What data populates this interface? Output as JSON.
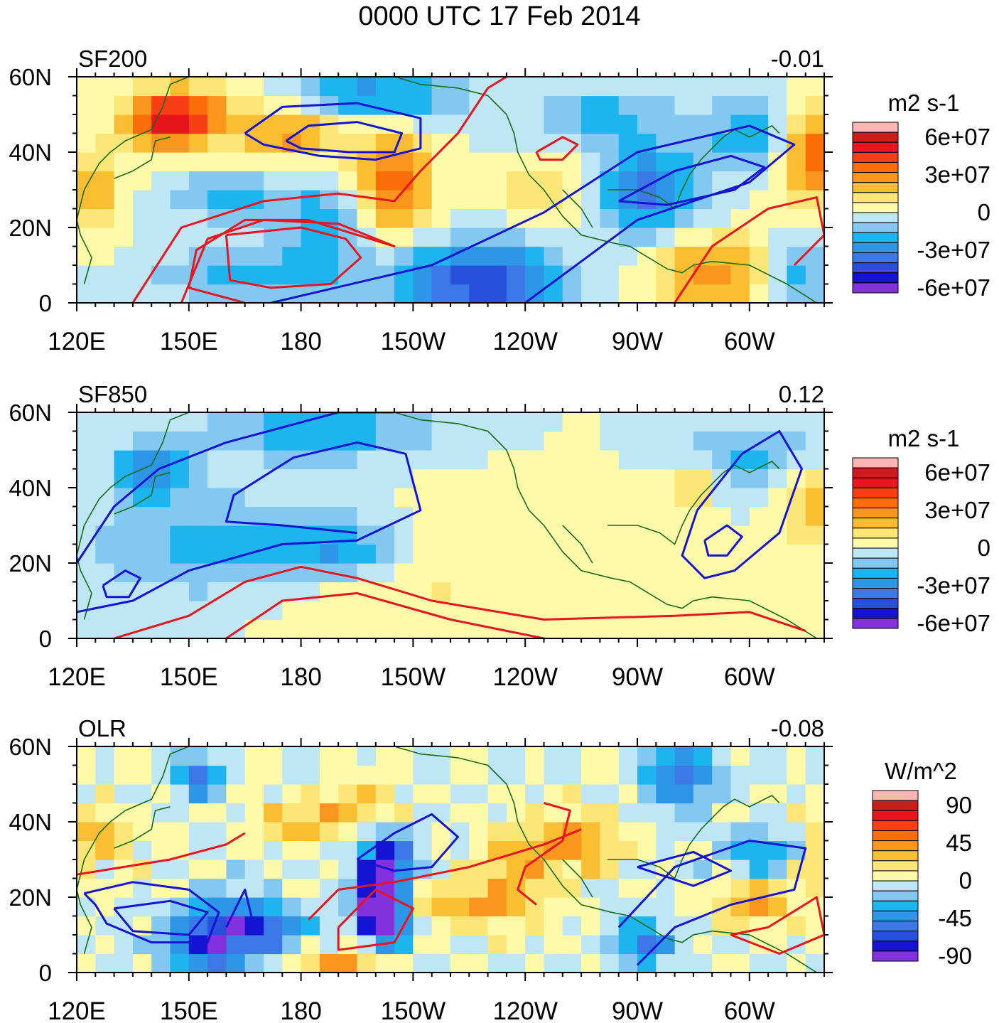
{
  "figure_title": "0000 UTC 17 Feb 2014",
  "colors": {
    "land_outline": "#1a6b1a",
    "positive_contour": "#e8141e",
    "negative_contour": "#1414d2",
    "frame": "#000000"
  },
  "chart_data": [
    {
      "type": "heatmap",
      "name": "SF200",
      "title": "SF200",
      "correlation_label": "-0.01",
      "units": "m2 s-1",
      "xlabel": "",
      "ylabel": "",
      "xlim": [
        120,
        320
      ],
      "ylim": [
        0,
        60
      ],
      "x_ticks": [
        "120E",
        "150E",
        "180",
        "150W",
        "120W",
        "90W",
        "60W"
      ],
      "y_ticks": [
        "0",
        "20N",
        "40N",
        "60N"
      ],
      "colorbar_labels": [
        "6e+07",
        "3e+07",
        "0",
        "-3e+07",
        "-6e+07"
      ],
      "colorbar_colors": [
        "#f9b4b4",
        "#c81e1e",
        "#e8141e",
        "#f83e14",
        "#fa6e0a",
        "#fa961e",
        "#fbbe32",
        "#fde678",
        "#fffaaa",
        "#bee6f5",
        "#82c8f0",
        "#1eb4f0",
        "#2d96e6",
        "#3c78e6",
        "#2850dc",
        "#1414d2",
        "#8232dc"
      ],
      "contour_levels": {
        "positive": "red",
        "negative": "blue"
      }
    },
    {
      "type": "heatmap",
      "name": "SF850",
      "title": "SF850",
      "correlation_label": "0.12",
      "units": "m2 s-1",
      "xlabel": "",
      "ylabel": "",
      "xlim": [
        120,
        320
      ],
      "ylim": [
        0,
        60
      ],
      "x_ticks": [
        "120E",
        "150E",
        "180",
        "150W",
        "120W",
        "90W",
        "60W"
      ],
      "y_ticks": [
        "0",
        "20N",
        "40N",
        "60N"
      ],
      "colorbar_labels": [
        "6e+07",
        "3e+07",
        "0",
        "-3e+07",
        "-6e+07"
      ],
      "colorbar_colors": [
        "#f9b4b4",
        "#c81e1e",
        "#e8141e",
        "#f83e14",
        "#fa6e0a",
        "#fa961e",
        "#fbbe32",
        "#fde678",
        "#fffaaa",
        "#bee6f5",
        "#82c8f0",
        "#1eb4f0",
        "#2d96e6",
        "#3c78e6",
        "#2850dc",
        "#1414d2",
        "#8232dc"
      ],
      "contour_levels": {
        "positive": "red",
        "negative": "blue"
      }
    },
    {
      "type": "heatmap",
      "name": "OLR",
      "title": "OLR",
      "correlation_label": "-0.08",
      "units": "W/m^2",
      "xlabel": "",
      "ylabel": "",
      "xlim": [
        120,
        320
      ],
      "ylim": [
        0,
        60
      ],
      "x_ticks": [
        "120E",
        "150E",
        "180",
        "150W",
        "120W",
        "90W",
        "60W"
      ],
      "y_ticks": [
        "0",
        "20N",
        "40N",
        "60N"
      ],
      "colorbar_labels": [
        "90",
        "45",
        "0",
        "-45",
        "-90"
      ],
      "colorbar_colors": [
        "#f9b4b4",
        "#c81e1e",
        "#e8141e",
        "#f83e14",
        "#fa6e0a",
        "#fa961e",
        "#fbbe32",
        "#fde678",
        "#fffaaa",
        "#bee6f5",
        "#82c8f0",
        "#1eb4f0",
        "#2d96e6",
        "#3c78e6",
        "#2850dc",
        "#1414d2",
        "#8232dc"
      ],
      "contour_levels": {
        "positive": "red",
        "negative": "blue"
      }
    }
  ]
}
